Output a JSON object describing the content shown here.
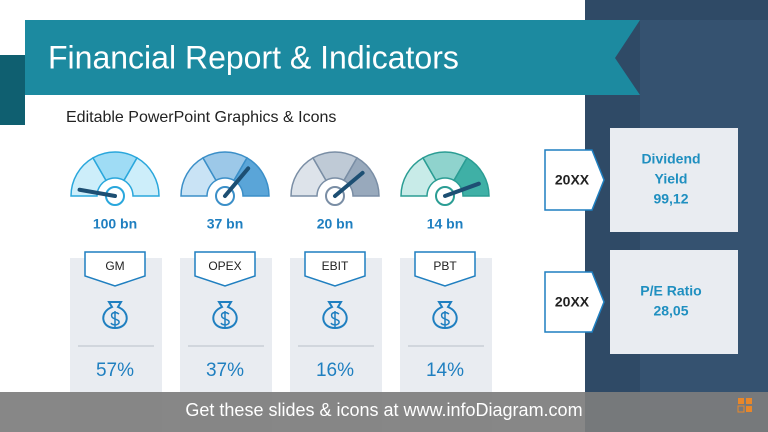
{
  "header": {
    "title": "Financial Report & Indicators",
    "subtitle": "Editable PowerPoint Graphics & Icons"
  },
  "indicators": [
    {
      "amount": "100 bn",
      "label": "GM",
      "percent": "57%"
    },
    {
      "amount": "37 bn",
      "label": "OPEX",
      "percent": "37%"
    },
    {
      "amount": "20 bn",
      "label": "EBIT",
      "percent": "16%"
    },
    {
      "amount": "14 bn",
      "label": "PBT",
      "percent": "14%"
    }
  ],
  "side_boxes": [
    {
      "period": "20XX",
      "lines": [
        "Dividend",
        "Yield",
        "99,12"
      ]
    },
    {
      "period": "20XX",
      "lines": [
        "P/E Ratio",
        "28,05"
      ]
    }
  ],
  "footer": "Get these slides & icons at www.infoDiagram.com"
}
